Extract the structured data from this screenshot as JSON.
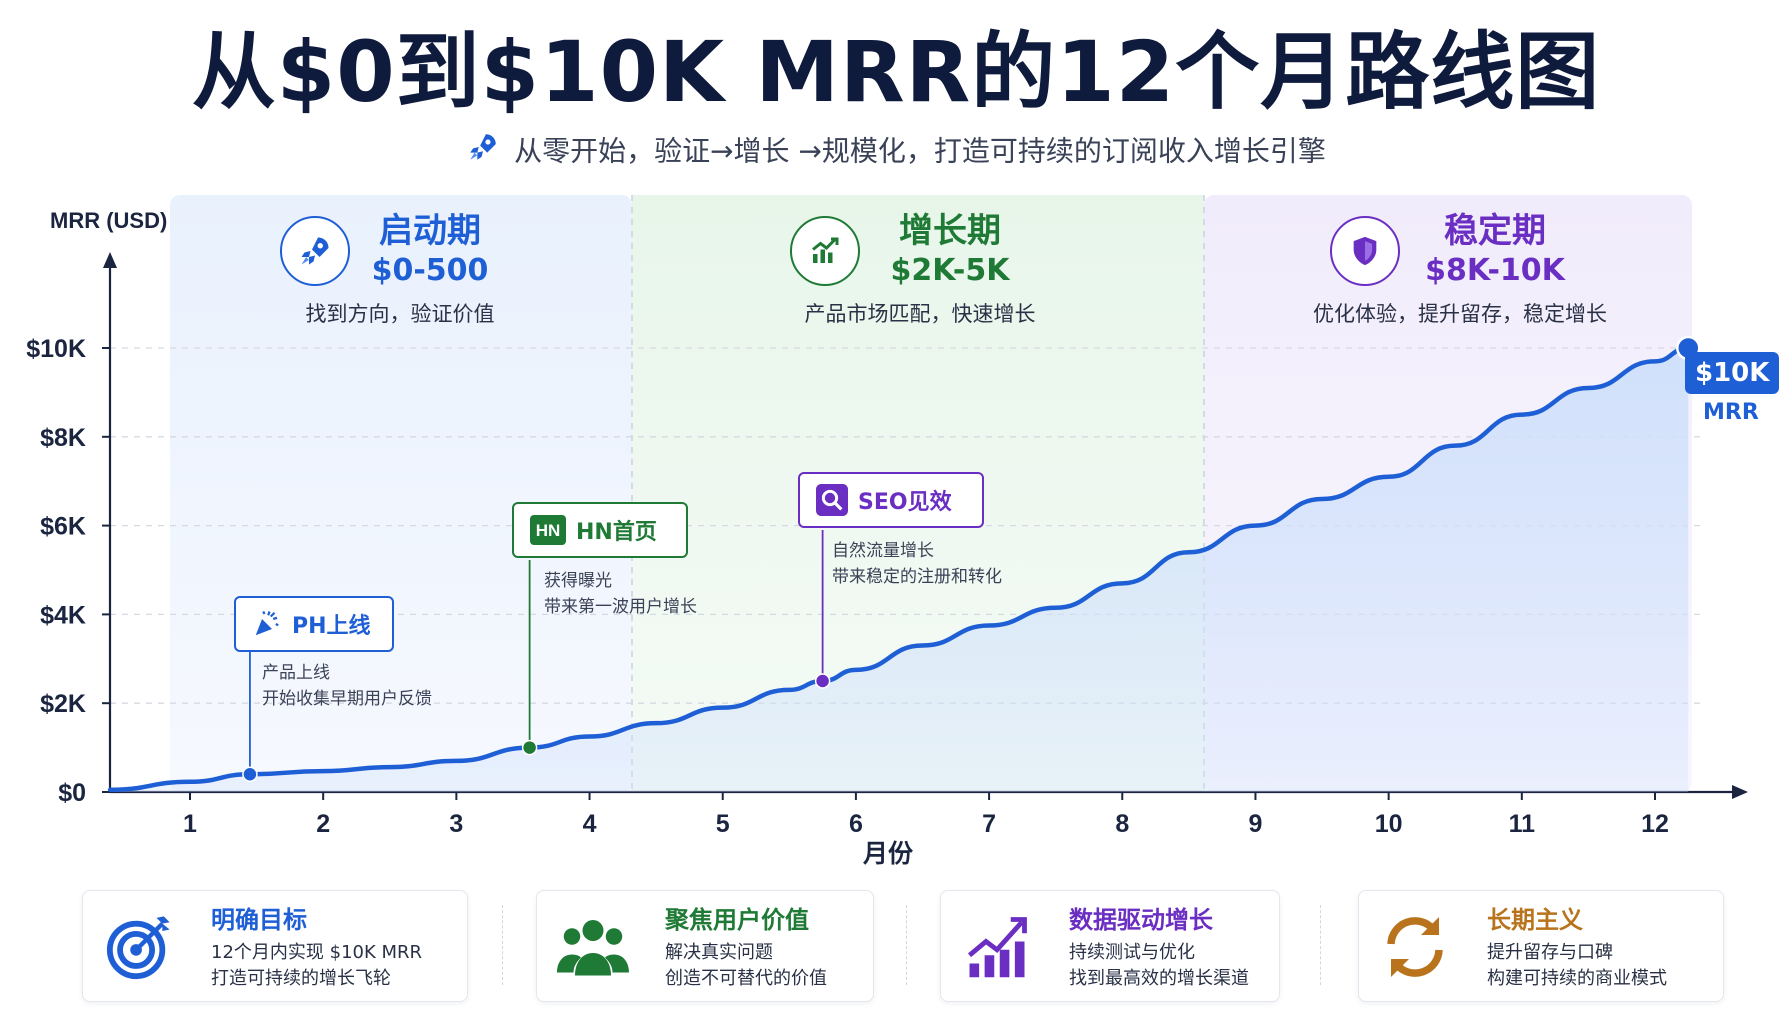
{
  "header": {
    "title": "从$0到$10K MRR的12个月路线图",
    "subtitle": "从零开始，验证→增长 →规模化，打造可持续的订阅收入增长引擎"
  },
  "phases": [
    {
      "name": "启动期",
      "range": "$0-500",
      "desc": "找到方向，验证价值",
      "color": "#1f5fd6",
      "icon": "rocket-icon"
    },
    {
      "name": "增长期",
      "range": "$2K-5K",
      "desc": "产品市场匹配，快速增长",
      "color": "#1e7a35",
      "icon": "growth-chart-icon"
    },
    {
      "name": "稳定期",
      "range": "$8K-10K",
      "desc": "优化体验，提升留存，稳定增长",
      "color": "#6a2fc2",
      "icon": "shield-icon"
    }
  ],
  "milestones": [
    {
      "label": "PH上线",
      "notes": [
        "产品上线",
        "开始收集早期用户反馈"
      ],
      "color": "#1f5fd6",
      "icon": "party-popper-icon",
      "x": 1.45,
      "y": 400
    },
    {
      "label": "HN首页",
      "notes": [
        "获得曝光",
        "带来第一波用户增长"
      ],
      "color": "#1e7a35",
      "icon": "hn-logo-icon",
      "x": 3.55,
      "y": 1000
    },
    {
      "label": "SEO见效",
      "notes": [
        "自然流量增长",
        "带来稳定的注册和转化"
      ],
      "color": "#6a2fc2",
      "icon": "search-icon",
      "x": 5.75,
      "y": 2500
    }
  ],
  "end_label": {
    "value": "$10K",
    "sub": "MRR"
  },
  "chart_data": {
    "type": "area",
    "ylabel": "MRR (USD)",
    "xlabel": "月份",
    "x_ticks": [
      "1",
      "2",
      "3",
      "4",
      "5",
      "6",
      "7",
      "8",
      "9",
      "10",
      "11",
      "12"
    ],
    "y_ticks": [
      "$0",
      "$2K",
      "$4K",
      "$6K",
      "$8K",
      "$10K"
    ],
    "ylim": [
      0,
      10000
    ],
    "xlim": [
      0.4,
      12.3
    ],
    "grid": true,
    "series": [
      {
        "x": [
          0.4,
          1.0,
          1.45,
          2.0,
          2.5,
          3.0,
          3.55,
          4.0,
          4.5,
          5.0,
          5.5,
          5.75,
          6.0,
          6.5,
          7.0,
          7.5,
          8.0,
          8.5,
          9.0,
          9.5,
          10.0,
          10.5,
          11.0,
          11.5,
          12.0,
          12.25
        ],
        "values": [
          50,
          230,
          400,
          470,
          560,
          700,
          1000,
          1250,
          1550,
          1900,
          2300,
          2500,
          2750,
          3300,
          3750,
          4150,
          4700,
          5400,
          6000,
          6600,
          7100,
          7800,
          8500,
          9100,
          9700,
          10000
        ]
      }
    ],
    "colors": {
      "line": "#1f5fd6",
      "fill": "#cfe0fb"
    }
  },
  "cards": [
    {
      "title": "明确目标",
      "lines": [
        "12个月内实现 $10K MRR",
        "打造可持续的增长飞轮"
      ],
      "color": "#1f5fd6",
      "icon": "target-icon"
    },
    {
      "title": "聚焦用户价值",
      "lines": [
        "解决真实问题",
        "创造不可替代的价值"
      ],
      "color": "#1e7a35",
      "icon": "users-icon"
    },
    {
      "title": "数据驱动增长",
      "lines": [
        "持续测试与优化",
        "找到最高效的增长渠道"
      ],
      "color": "#6a2fc2",
      "icon": "bar-chart-icon"
    },
    {
      "title": "长期主义",
      "lines": [
        "提升留存与口碑",
        "构建可持续的商业模式"
      ],
      "color": "#b8731c",
      "icon": "cycle-icon"
    }
  ]
}
